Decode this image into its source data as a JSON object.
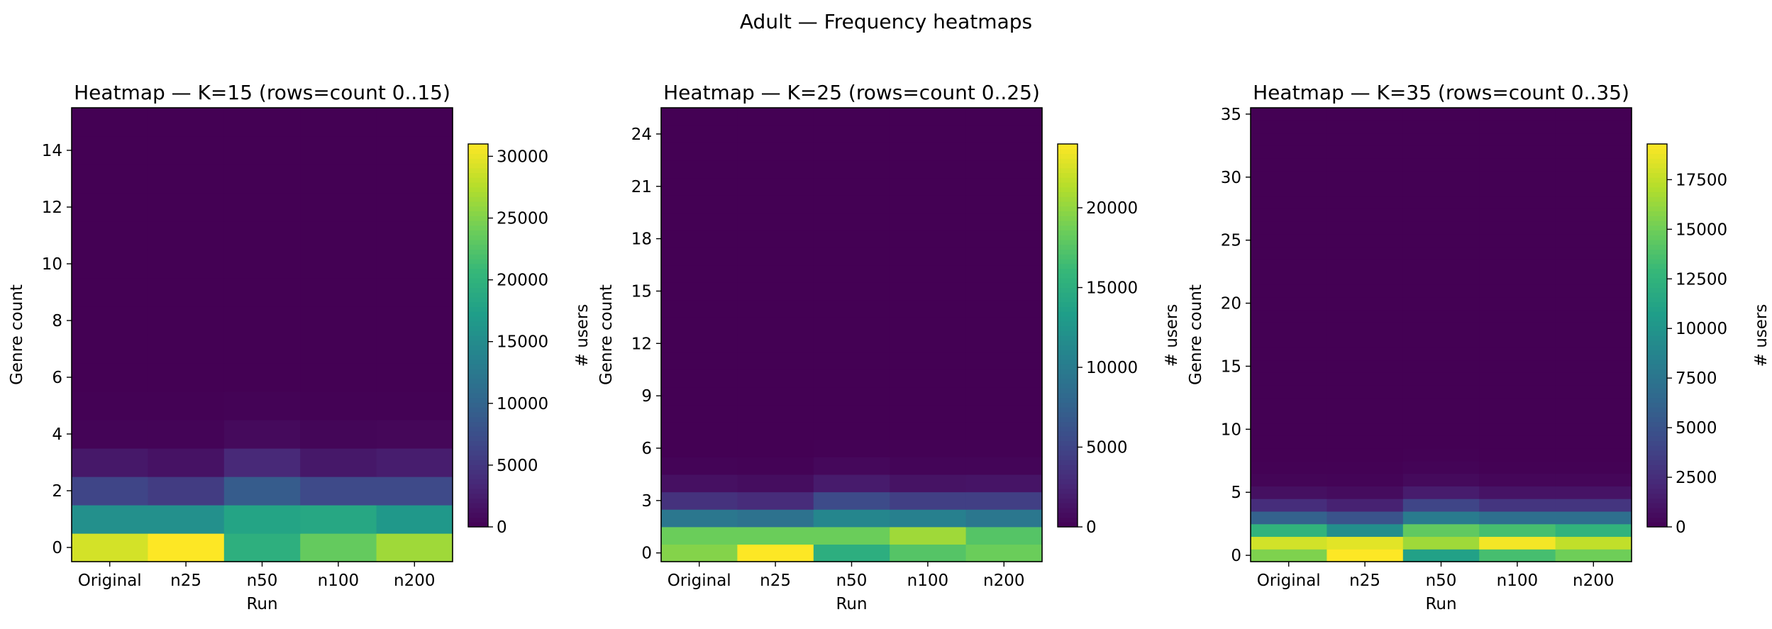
{
  "figure": {
    "suptitle": "Adult — Frequency heatmaps"
  },
  "colormap": {
    "name": "viridis",
    "stops": [
      "#440154",
      "#482878",
      "#3e4989",
      "#31688e",
      "#26828e",
      "#1f9e89",
      "#35b779",
      "#6ece58",
      "#b5de2b",
      "#fde725"
    ]
  },
  "chart_data": [
    {
      "type": "heatmap",
      "title": "Heatmap — K=15 (rows=count 0..15)",
      "xlabel": "Run",
      "ylabel": "Genre count",
      "colorbar_label": "# users",
      "x": [
        "Original",
        "n25",
        "n50",
        "n100",
        "n200"
      ],
      "rows": [
        0,
        1,
        2,
        3,
        4,
        5,
        6,
        7,
        8,
        9,
        10,
        11,
        12,
        13,
        14,
        15
      ],
      "yticks": [
        0,
        2,
        4,
        6,
        8,
        10,
        12,
        14
      ],
      "vmin": 0,
      "vmax": 31000,
      "cbar_ticks": [
        0,
        5000,
        10000,
        15000,
        20000,
        25000,
        30000
      ],
      "values": [
        [
          29000,
          31000,
          19500,
          23500,
          26500
        ],
        [
          15500,
          15500,
          18000,
          18500,
          16500
        ],
        [
          6500,
          5500,
          9000,
          7000,
          7000
        ],
        [
          2000,
          1500,
          3500,
          2000,
          2500
        ],
        [
          300,
          300,
          800,
          400,
          500
        ],
        [
          50,
          50,
          150,
          80,
          100
        ],
        [
          0,
          0,
          20,
          10,
          10
        ],
        [
          0,
          0,
          0,
          0,
          0
        ],
        [
          0,
          0,
          0,
          0,
          0
        ],
        [
          0,
          0,
          0,
          0,
          0
        ],
        [
          0,
          0,
          0,
          0,
          0
        ],
        [
          0,
          0,
          0,
          0,
          0
        ],
        [
          0,
          0,
          0,
          0,
          0
        ],
        [
          0,
          0,
          0,
          0,
          0
        ],
        [
          0,
          0,
          0,
          0,
          0
        ],
        [
          0,
          0,
          0,
          0,
          0
        ]
      ]
    },
    {
      "type": "heatmap",
      "title": "Heatmap — K=25 (rows=count 0..25)",
      "xlabel": "Run",
      "ylabel": "Genre count",
      "colorbar_label": "# users",
      "x": [
        "Original",
        "n25",
        "n50",
        "n100",
        "n200"
      ],
      "rows": [
        0,
        1,
        2,
        3,
        4,
        5,
        6,
        7,
        8,
        9,
        10,
        11,
        12,
        13,
        14,
        15,
        16,
        17,
        18,
        19,
        20,
        21,
        22,
        23,
        24,
        25
      ],
      "yticks": [
        0,
        3,
        6,
        9,
        12,
        15,
        18,
        21,
        24
      ],
      "vmin": 0,
      "vmax": 24000,
      "cbar_ticks": [
        0,
        5000,
        10000,
        15000,
        20000
      ],
      "values": [
        [
          19500,
          24000,
          15000,
          17500,
          18500
        ],
        [
          18500,
          18500,
          18500,
          20500,
          17500
        ],
        [
          9500,
          9000,
          11000,
          10500,
          9500
        ],
        [
          3500,
          3000,
          5500,
          4500,
          4500
        ],
        [
          1000,
          800,
          1800,
          1200,
          1300
        ],
        [
          200,
          150,
          500,
          300,
          300
        ],
        [
          30,
          30,
          100,
          50,
          50
        ],
        [
          0,
          0,
          20,
          10,
          10
        ],
        [
          0,
          0,
          0,
          0,
          0
        ],
        [
          0,
          0,
          0,
          0,
          0
        ],
        [
          0,
          0,
          0,
          0,
          0
        ],
        [
          0,
          0,
          0,
          0,
          0
        ],
        [
          0,
          0,
          0,
          0,
          0
        ],
        [
          0,
          0,
          0,
          0,
          0
        ],
        [
          0,
          0,
          0,
          0,
          0
        ],
        [
          0,
          0,
          0,
          0,
          0
        ],
        [
          0,
          0,
          0,
          0,
          0
        ],
        [
          0,
          0,
          0,
          0,
          0
        ],
        [
          0,
          0,
          0,
          0,
          0
        ],
        [
          0,
          0,
          0,
          0,
          0
        ],
        [
          0,
          0,
          0,
          0,
          0
        ],
        [
          0,
          0,
          0,
          0,
          0
        ],
        [
          0,
          0,
          0,
          0,
          0
        ],
        [
          0,
          0,
          0,
          0,
          0
        ],
        [
          0,
          0,
          0,
          0,
          0
        ],
        [
          0,
          0,
          0,
          0,
          0
        ]
      ]
    },
    {
      "type": "heatmap",
      "title": "Heatmap — K=35 (rows=count 0..35)",
      "xlabel": "Run",
      "ylabel": "Genre count",
      "colorbar_label": "# users",
      "x": [
        "Original",
        "n25",
        "n50",
        "n100",
        "n200"
      ],
      "rows": [
        0,
        1,
        2,
        3,
        4,
        5,
        6,
        7,
        8,
        9,
        10,
        11,
        12,
        13,
        14,
        15,
        16,
        17,
        18,
        19,
        20,
        21,
        22,
        23,
        24,
        25,
        26,
        27,
        28,
        29,
        30,
        31,
        32,
        33,
        34,
        35
      ],
      "yticks": [
        0,
        5,
        10,
        15,
        20,
        25,
        30,
        35
      ],
      "vmin": 0,
      "vmax": 19300,
      "cbar_ticks": [
        0,
        2500,
        5000,
        7500,
        10000,
        12500,
        15000,
        17500
      ],
      "values": [
        [
          15500,
          19300,
          11000,
          13500,
          15000
        ],
        [
          18000,
          18500,
          16500,
          19000,
          17500
        ],
        [
          12500,
          9500,
          14500,
          13500,
          12500
        ],
        [
          6000,
          5000,
          8000,
          7000,
          7000
        ],
        [
          2500,
          1800,
          4000,
          3000,
          3000
        ],
        [
          800,
          600,
          1500,
          1000,
          1000
        ],
        [
          200,
          150,
          500,
          300,
          300
        ],
        [
          50,
          30,
          150,
          80,
          80
        ],
        [
          0,
          0,
          30,
          10,
          10
        ],
        [
          0,
          0,
          0,
          0,
          0
        ],
        [
          0,
          0,
          0,
          0,
          0
        ],
        [
          0,
          0,
          0,
          0,
          0
        ],
        [
          0,
          0,
          0,
          0,
          0
        ],
        [
          0,
          0,
          0,
          0,
          0
        ],
        [
          0,
          0,
          0,
          0,
          0
        ],
        [
          0,
          0,
          0,
          0,
          0
        ],
        [
          0,
          0,
          0,
          0,
          0
        ],
        [
          0,
          0,
          0,
          0,
          0
        ],
        [
          0,
          0,
          0,
          0,
          0
        ],
        [
          0,
          0,
          0,
          0,
          0
        ],
        [
          0,
          0,
          0,
          0,
          0
        ],
        [
          0,
          0,
          0,
          0,
          0
        ],
        [
          0,
          0,
          0,
          0,
          0
        ],
        [
          0,
          0,
          0,
          0,
          0
        ],
        [
          0,
          0,
          0,
          0,
          0
        ],
        [
          0,
          0,
          0,
          0,
          0
        ],
        [
          0,
          0,
          0,
          0,
          0
        ],
        [
          0,
          0,
          0,
          0,
          0
        ],
        [
          0,
          0,
          0,
          0,
          0
        ],
        [
          0,
          0,
          0,
          0,
          0
        ],
        [
          0,
          0,
          0,
          0,
          0
        ],
        [
          0,
          0,
          0,
          0,
          0
        ],
        [
          0,
          0,
          0,
          0,
          0
        ],
        [
          0,
          0,
          0,
          0,
          0
        ],
        [
          0,
          0,
          0,
          0,
          0
        ],
        [
          0,
          0,
          0,
          0,
          0
        ]
      ]
    }
  ]
}
